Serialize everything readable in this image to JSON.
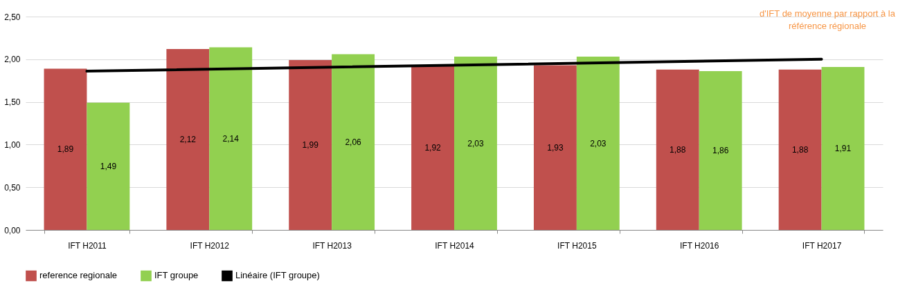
{
  "chart_data": {
    "type": "bar",
    "categories": [
      "IFT H2011",
      "IFT H2012",
      "IFT H2013",
      "IFT H2014",
      "IFT H2015",
      "IFT H2016",
      "IFT H2017"
    ],
    "series": [
      {
        "name": "reference regionale",
        "color": "#c0504d",
        "values": [
          1.89,
          2.12,
          1.99,
          1.92,
          1.93,
          1.88,
          1.88
        ],
        "value_labels": [
          "1,89",
          "2,12",
          "1,99",
          "1,92",
          "1,93",
          "1,88",
          "1,88"
        ]
      },
      {
        "name": "IFT groupe",
        "color": "#92d050",
        "values": [
          1.49,
          2.14,
          2.06,
          2.03,
          2.03,
          1.86,
          1.91
        ],
        "value_labels": [
          "1,49",
          "2,14",
          "2,06",
          "2,03",
          "2,03",
          "1,86",
          "1,91"
        ]
      },
      {
        "name": "Linéaire (IFT groupe)",
        "type": "line",
        "color": "#000000",
        "x": [
          "IFT H2011",
          "IFT H2017"
        ],
        "values": [
          1.86,
          2.0
        ]
      }
    ],
    "ylim": [
      0,
      2.5
    ],
    "yticks": [
      {
        "value": 0,
        "label": "0,00"
      },
      {
        "value": 0.5,
        "label": "0,50"
      },
      {
        "value": 1,
        "label": "1,00"
      },
      {
        "value": 1.5,
        "label": "1,50"
      },
      {
        "value": 2,
        "label": "2,00"
      },
      {
        "value": 2.5,
        "label": "2,50"
      }
    ],
    "grid": "y",
    "legend": "bottom",
    "annotations": [
      "d'IFT  de moyenne par rapport à la référence régionale"
    ]
  }
}
